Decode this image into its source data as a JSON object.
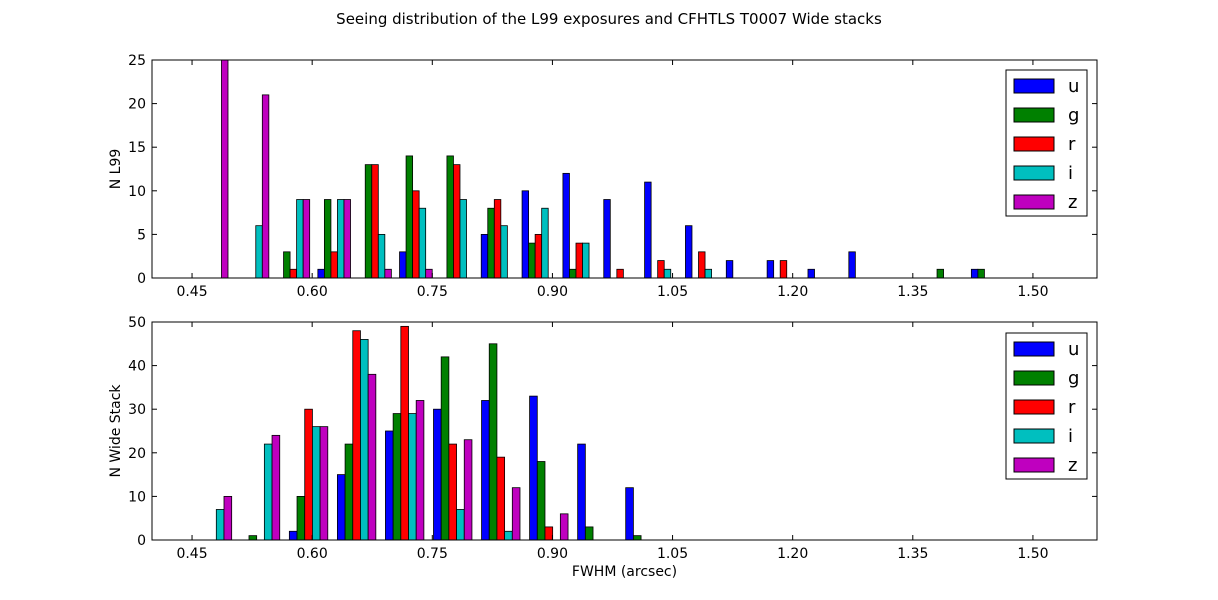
{
  "figure": {
    "title": "Seeing distribution of the L99 exposures and CFHTLS T0007 Wide stacks"
  },
  "colors": {
    "u": "#0000ff",
    "g": "#008000",
    "r": "#ff0000",
    "i": "#00bfbf",
    "z": "#bf00bf"
  },
  "chart_data": [
    {
      "type": "bar",
      "panel": "top",
      "xlabel": "",
      "ylabel": "N L99",
      "xlim": [
        0.4,
        1.58
      ],
      "ylim": [
        0,
        25
      ],
      "xticks": [
        0.45,
        0.6,
        0.75,
        0.9,
        1.05,
        1.2,
        1.35,
        1.5
      ],
      "xtick_labels": [
        "0.45",
        "0.60",
        "0.75",
        "0.90",
        "1.05",
        "1.20",
        "1.35",
        "1.50"
      ],
      "yticks": [
        0,
        5,
        10,
        15,
        20,
        25
      ],
      "legend": "top-right",
      "bin_centers": [
        0.4745,
        0.5255,
        0.5765,
        0.6275,
        0.6785,
        0.7295,
        0.7805,
        0.8315,
        0.8825,
        0.9335,
        0.9845,
        1.0355,
        1.0865,
        1.1375,
        1.1885,
        1.2395,
        1.2905,
        1.3415,
        1.3925,
        1.4435
      ],
      "series": [
        {
          "name": "u",
          "values": [
            0,
            0,
            0,
            1,
            0,
            3,
            0,
            5,
            10,
            12,
            9,
            11,
            6,
            2,
            2,
            1,
            3,
            0,
            0,
            1
          ]
        },
        {
          "name": "g",
          "values": [
            0,
            0,
            3,
            9,
            13,
            14,
            14,
            8,
            4,
            1,
            0,
            0,
            0,
            0,
            0,
            0,
            0,
            0,
            1,
            1
          ]
        },
        {
          "name": "r",
          "values": [
            0,
            0,
            1,
            3,
            13,
            10,
            13,
            9,
            5,
            4,
            1,
            2,
            3,
            0,
            2,
            0,
            0,
            0,
            0,
            0
          ]
        },
        {
          "name": "i",
          "values": [
            0,
            6,
            9,
            9,
            5,
            8,
            9,
            6,
            8,
            4,
            0,
            1,
            1,
            0,
            0,
            0,
            0,
            0,
            0,
            0
          ]
        },
        {
          "name": "z",
          "values": [
            25,
            21,
            9,
            9,
            1,
            1,
            0,
            0,
            0,
            0,
            0,
            0,
            0,
            0,
            0,
            0,
            0,
            0,
            0,
            0
          ]
        }
      ]
    },
    {
      "type": "bar",
      "panel": "bottom",
      "xlabel": "FWHM (arcsec)",
      "ylabel": "N Wide Stack",
      "xlim": [
        0.4,
        1.58
      ],
      "ylim": [
        0,
        50
      ],
      "xticks": [
        0.45,
        0.6,
        0.75,
        0.9,
        1.05,
        1.2,
        1.35,
        1.5
      ],
      "xtick_labels": [
        "0.45",
        "0.60",
        "0.75",
        "0.90",
        "1.05",
        "1.20",
        "1.35",
        "1.50"
      ],
      "yticks": [
        0,
        10,
        20,
        30,
        40,
        50
      ],
      "legend": "top-right",
      "bin_centers": [
        0.4755,
        0.5355,
        0.5955,
        0.6555,
        0.7155,
        0.7755,
        0.8355,
        0.8955,
        0.9555,
        1.0155
      ],
      "series": [
        {
          "name": "u",
          "values": [
            0,
            0,
            2,
            15,
            25,
            30,
            32,
            33,
            22,
            12
          ]
        },
        {
          "name": "g",
          "values": [
            0,
            1,
            10,
            22,
            29,
            42,
            45,
            18,
            3,
            1
          ]
        },
        {
          "name": "r",
          "values": [
            0,
            0,
            30,
            48,
            49,
            22,
            19,
            3,
            0,
            0
          ]
        },
        {
          "name": "i",
          "values": [
            7,
            22,
            26,
            46,
            29,
            7,
            2,
            0,
            0,
            0
          ]
        },
        {
          "name": "z",
          "values": [
            10,
            24,
            26,
            38,
            32,
            23,
            12,
            6,
            0,
            0
          ]
        }
      ]
    }
  ]
}
